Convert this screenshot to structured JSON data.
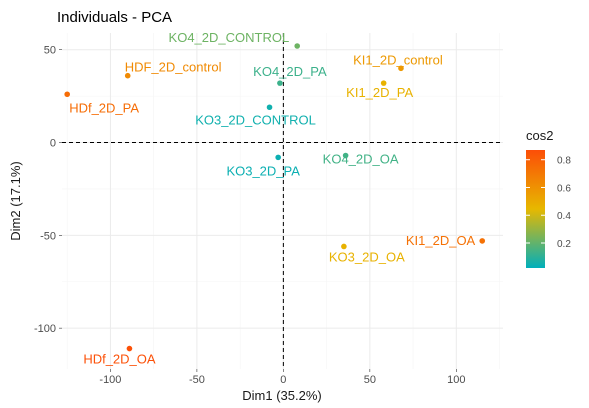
{
  "chart_data": {
    "type": "scatter",
    "title": "Individuals - PCA",
    "xlabel": "Dim1 (35.2%)",
    "ylabel": "Dim2 (17.1%)",
    "xlim": [
      -128,
      127
    ],
    "ylim": [
      -122,
      59
    ],
    "xticks": [
      -100,
      -50,
      0,
      50,
      100
    ],
    "yticks": [
      -100,
      -50,
      0,
      50
    ],
    "grid": true,
    "reference_lines": {
      "x": 0,
      "y": 0
    },
    "points": [
      {
        "label": "KO4_2D_CONTROL",
        "x": 8,
        "y": 52,
        "cos2": 0.22
      },
      {
        "label": "HDF_2D_control",
        "x": -90,
        "y": 36,
        "cos2": 0.63
      },
      {
        "label": "KI1_2D_control",
        "x": 68,
        "y": 40,
        "cos2": 0.57
      },
      {
        "label": "KO4_2D_PA",
        "x": -2,
        "y": 32,
        "cos2": 0.13
      },
      {
        "label": "KI1_2D_PA",
        "x": 58,
        "y": 32,
        "cos2": 0.47
      },
      {
        "label": "HDf_2D_PA",
        "x": -125,
        "y": 26,
        "cos2": 0.75
      },
      {
        "label": "KO3_2D_CONTROL",
        "x": -8,
        "y": 19,
        "cos2": 0.05
      },
      {
        "label": "KO4_2D_OA",
        "x": 36,
        "y": -7,
        "cos2": 0.14
      },
      {
        "label": "KO3_2D_PA",
        "x": -3,
        "y": -8,
        "cos2": 0.04
      },
      {
        "label": "KO3_2D_OA",
        "x": 35,
        "y": -56,
        "cos2": 0.47
      },
      {
        "label": "KI1_2D_OA",
        "x": 115,
        "y": -53,
        "cos2": 0.73
      },
      {
        "label": "HDf_2D_OA",
        "x": -89,
        "y": -111,
        "cos2": 0.86
      }
    ],
    "legend": {
      "title": "cos2",
      "position": "right",
      "ticks": [
        0.2,
        0.4,
        0.6,
        0.8
      ],
      "range": [
        0.02,
        0.87
      ],
      "colors": [
        "#00AFBB",
        "#E7B800",
        "#FC4E07"
      ]
    }
  }
}
